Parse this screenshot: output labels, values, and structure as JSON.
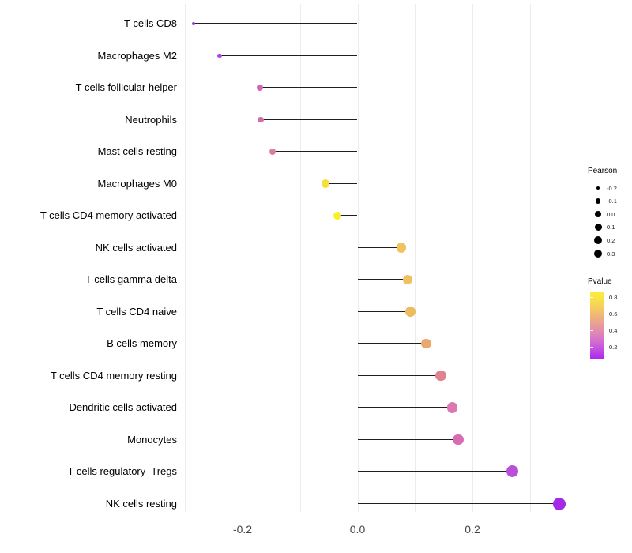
{
  "chart_data": {
    "type": "lollipop",
    "title": "",
    "xlabel": "",
    "ylabel": "",
    "x_axis": {
      "ticks": [
        {
          "value": -0.2,
          "label": "-0.2"
        },
        {
          "value": 0.0,
          "label": "0.0"
        },
        {
          "value": 0.2,
          "label": "0.2"
        }
      ],
      "gridlines": [
        -0.3,
        -0.2,
        -0.1,
        0.0,
        0.1,
        0.2,
        0.3
      ],
      "range": [
        -0.31,
        0.36
      ]
    },
    "points": [
      {
        "label": "T cells CD8",
        "pearson": -0.285,
        "pvalue": 0.15,
        "color": "#A136DA"
      },
      {
        "label": "Macrophages M2",
        "pearson": -0.24,
        "pvalue": 0.22,
        "color": "#B441D2"
      },
      {
        "label": "T cells follicular helper",
        "pearson": -0.17,
        "pvalue": 0.38,
        "color": "#CE68B2"
      },
      {
        "label": "Neutrophils",
        "pearson": -0.168,
        "pvalue": 0.39,
        "color": "#D06DAD"
      },
      {
        "label": "Mast cells resting",
        "pearson": -0.148,
        "pvalue": 0.45,
        "color": "#DB8099"
      },
      {
        "label": "Macrophages M0",
        "pearson": -0.056,
        "pvalue": 0.78,
        "color": "#F5DF3B"
      },
      {
        "label": "T cells CD4 memory activated",
        "pearson": -0.035,
        "pvalue": 0.85,
        "color": "#F8F025"
      },
      {
        "label": "NK cells activated",
        "pearson": 0.076,
        "pvalue": 0.63,
        "color": "#EFC45E"
      },
      {
        "label": "T cells gamma delta",
        "pearson": 0.087,
        "pvalue": 0.62,
        "color": "#EFC160"
      },
      {
        "label": "T cells CD4 naive",
        "pearson": 0.092,
        "pvalue": 0.61,
        "color": "#EDBC60"
      },
      {
        "label": "B cells memory",
        "pearson": 0.12,
        "pvalue": 0.55,
        "color": "#ECA76E"
      },
      {
        "label": "T cells CD4 memory resting",
        "pearson": 0.145,
        "pvalue": 0.46,
        "color": "#E0838E"
      },
      {
        "label": "Dendritic cells activated",
        "pearson": 0.165,
        "pvalue": 0.4,
        "color": "#DC78B1"
      },
      {
        "label": "Monocytes",
        "pearson": 0.175,
        "pvalue": 0.37,
        "color": "#D96BB5"
      },
      {
        "label": "T cells regulatory  Tregs",
        "pearson": 0.27,
        "pvalue": 0.24,
        "color": "#B94FD9"
      },
      {
        "label": "NK cells resting",
        "pearson": 0.351,
        "pvalue": 0.12,
        "color": "#A32BE8"
      }
    ],
    "legends": {
      "size": {
        "title": "Pearson",
        "entries": [
          {
            "value": -0.2,
            "label": "-0.2"
          },
          {
            "value": -0.1,
            "label": "-0.1"
          },
          {
            "value": 0.0,
            "label": "0.0"
          },
          {
            "value": 0.1,
            "label": "0.1"
          },
          {
            "value": 0.2,
            "label": "0.2"
          },
          {
            "value": 0.3,
            "label": "0.3"
          }
        ]
      },
      "color": {
        "title": "Pvalue",
        "bar_range": [
          0.06,
          0.86
        ],
        "ticks": [
          {
            "value": 0.8,
            "label": "0.8"
          },
          {
            "value": 0.6,
            "label": "0.6"
          },
          {
            "value": 0.4,
            "label": "0.4"
          },
          {
            "value": 0.2,
            "label": "0.2"
          }
        ],
        "gradient_bottom_to_top": [
          "#AE29F0",
          "#C04BE2",
          "#D26BD0",
          "#DF85B8",
          "#E89A9C",
          "#EEB17D",
          "#F4C963",
          "#F8DE4C",
          "#FAEC3A"
        ]
      }
    },
    "colors": {
      "stem": "#1F1F1F",
      "gridline": "#ECECEC",
      "axis_text": "#454545",
      "label_text": "#000000"
    }
  }
}
